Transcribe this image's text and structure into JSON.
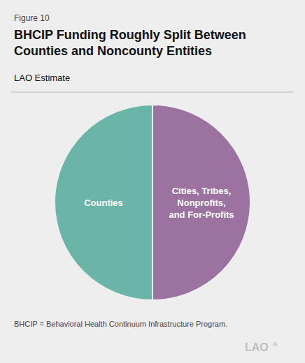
{
  "chart_data": {
    "type": "pie",
    "figure_label": "Figure 10",
    "title": "BHCIP Funding Roughly Split Between\nCounties and Noncounty Entities",
    "subtitle": "LAO Estimate",
    "footnote": "BHCIP = Behavioral Health Continuum Infrastructure Program.",
    "annotations": [
      "LAO",
      "A"
    ],
    "categories": [
      "Cities, Tribes,\nNonprofits,\nand For-Profits",
      "Counties"
    ],
    "values": [
      0.5,
      0.5
    ],
    "colors": [
      "#9b72a0",
      "#6ab4a8"
    ]
  }
}
